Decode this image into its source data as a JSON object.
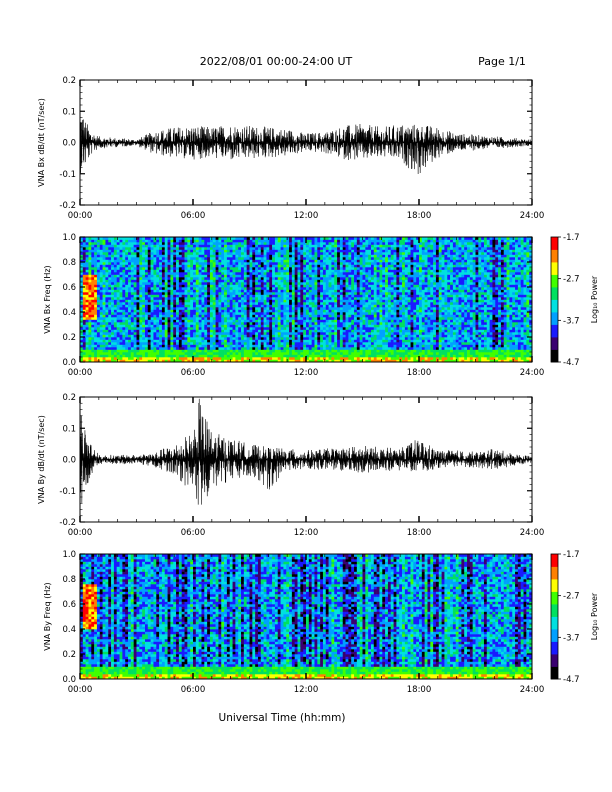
{
  "header": {
    "date_range": "2022/08/01  00:00-24:00 UT",
    "page": "Page 1/1"
  },
  "colors": {
    "trace": "#000000",
    "colormap": [
      "#000000",
      "#3a0070",
      "#1a1aff",
      "#00a0ff",
      "#00e0e0",
      "#00e060",
      "#40ff00",
      "#ffff00",
      "#ff8000",
      "#ff0000"
    ]
  },
  "chart_data": [
    {
      "type": "line",
      "title": "",
      "xlabel": "",
      "ylabel": "VNA Bx dB/dt (nT/sec)",
      "x_ticks": [
        "00:00",
        "06:00",
        "12:00",
        "18:00",
        "24:00"
      ],
      "y_ticks": [
        "-0.2",
        "-0.1",
        "0.0",
        "0.1",
        "0.2"
      ],
      "xlim_hours": [
        0,
        24
      ],
      "ylim": [
        -0.2,
        0.2
      ],
      "series": [
        {
          "envelope_hours": [
            0,
            0.3,
            0.6,
            1,
            2,
            3,
            4,
            5,
            6,
            7,
            8,
            9,
            10,
            11,
            12,
            13,
            14,
            15,
            16,
            17,
            18,
            19,
            20,
            21,
            22,
            23,
            24
          ],
          "envelope_max": [
            0.14,
            0.07,
            0.04,
            0.02,
            0.015,
            0.01,
            0.04,
            0.05,
            0.055,
            0.05,
            0.06,
            0.055,
            0.05,
            0.045,
            0.03,
            0.035,
            0.055,
            0.06,
            0.05,
            0.06,
            0.06,
            0.05,
            0.03,
            0.025,
            0.02,
            0.015,
            0.01
          ],
          "envelope_min": [
            -0.1,
            -0.08,
            -0.04,
            -0.02,
            -0.015,
            -0.01,
            -0.04,
            -0.05,
            -0.055,
            -0.05,
            -0.06,
            -0.055,
            -0.05,
            -0.045,
            -0.03,
            -0.035,
            -0.055,
            -0.06,
            -0.05,
            -0.06,
            -0.11,
            -0.05,
            -0.03,
            -0.025,
            -0.02,
            -0.015,
            -0.01
          ]
        }
      ]
    },
    {
      "type": "heatmap",
      "title": "",
      "xlabel": "",
      "ylabel": "VNA Bx Freq (Hz)",
      "x_ticks": [
        "00:00",
        "06:00",
        "12:00",
        "18:00",
        "24:00"
      ],
      "y_ticks": [
        "0.0",
        "0.2",
        "0.4",
        "0.6",
        "0.8",
        "1.0"
      ],
      "xlim_hours": [
        0,
        24
      ],
      "ylim": [
        0,
        1.0
      ],
      "colorbar": {
        "label": "Log₁₀ Power",
        "range": [
          -4.7,
          -1.7
        ],
        "ticks": [
          "-1.7",
          "-2.7",
          "-3.7",
          "-4.7"
        ]
      },
      "features": {
        "base_band_max_hz": 0.05,
        "burst_hours": [
          0.2,
          0.9
        ],
        "burst_freq_hz": [
          0.35,
          0.7
        ]
      }
    },
    {
      "type": "line",
      "title": "",
      "xlabel": "",
      "ylabel": "VNA By dB/dt (nT/sec)",
      "x_ticks": [
        "00:00",
        "06:00",
        "12:00",
        "18:00",
        "24:00"
      ],
      "y_ticks": [
        "-0.2",
        "-0.1",
        "0.0",
        "0.1",
        "0.2"
      ],
      "xlim_hours": [
        0,
        24
      ],
      "ylim": [
        -0.2,
        0.2
      ],
      "series": [
        {
          "envelope_hours": [
            0,
            0.3,
            0.6,
            1,
            2,
            3,
            4,
            5,
            5.5,
            6,
            6.3,
            7,
            8,
            9,
            10,
            11,
            12,
            13,
            14,
            15,
            16,
            17,
            18,
            19,
            20,
            21,
            22,
            23,
            24
          ],
          "envelope_max": [
            0.2,
            0.1,
            0.06,
            0.015,
            0.015,
            0.015,
            0.025,
            0.05,
            0.07,
            0.09,
            0.2,
            0.09,
            0.07,
            0.05,
            0.04,
            0.035,
            0.03,
            0.035,
            0.04,
            0.045,
            0.04,
            0.035,
            0.07,
            0.03,
            0.03,
            0.025,
            0.035,
            0.02,
            0.01
          ],
          "envelope_min": [
            -0.2,
            -0.12,
            -0.06,
            -0.015,
            -0.015,
            -0.015,
            -0.025,
            -0.05,
            -0.08,
            -0.1,
            -0.2,
            -0.09,
            -0.07,
            -0.05,
            -0.1,
            -0.035,
            -0.03,
            -0.035,
            -0.04,
            -0.045,
            -0.04,
            -0.035,
            -0.04,
            -0.03,
            -0.03,
            -0.025,
            -0.035,
            -0.02,
            -0.01
          ]
        }
      ]
    },
    {
      "type": "heatmap",
      "title": "",
      "xlabel": "Universal Time (hh:mm)",
      "ylabel": "VNA By Freq (Hz)",
      "x_ticks": [
        "00:00",
        "06:00",
        "12:00",
        "18:00",
        "24:00"
      ],
      "y_ticks": [
        "0.0",
        "0.2",
        "0.4",
        "0.6",
        "0.8",
        "1.0"
      ],
      "xlim_hours": [
        0,
        24
      ],
      "ylim": [
        0,
        1.0
      ],
      "colorbar": {
        "label": "Log₁₀ Power",
        "range": [
          -4.7,
          -1.7
        ],
        "ticks": [
          "-1.7",
          "-2.7",
          "-3.7",
          "-4.7"
        ]
      },
      "features": {
        "base_band_max_hz": 0.05,
        "burst_hours": [
          0.2,
          0.9
        ],
        "burst_freq_hz": [
          0.4,
          0.75
        ]
      }
    }
  ]
}
